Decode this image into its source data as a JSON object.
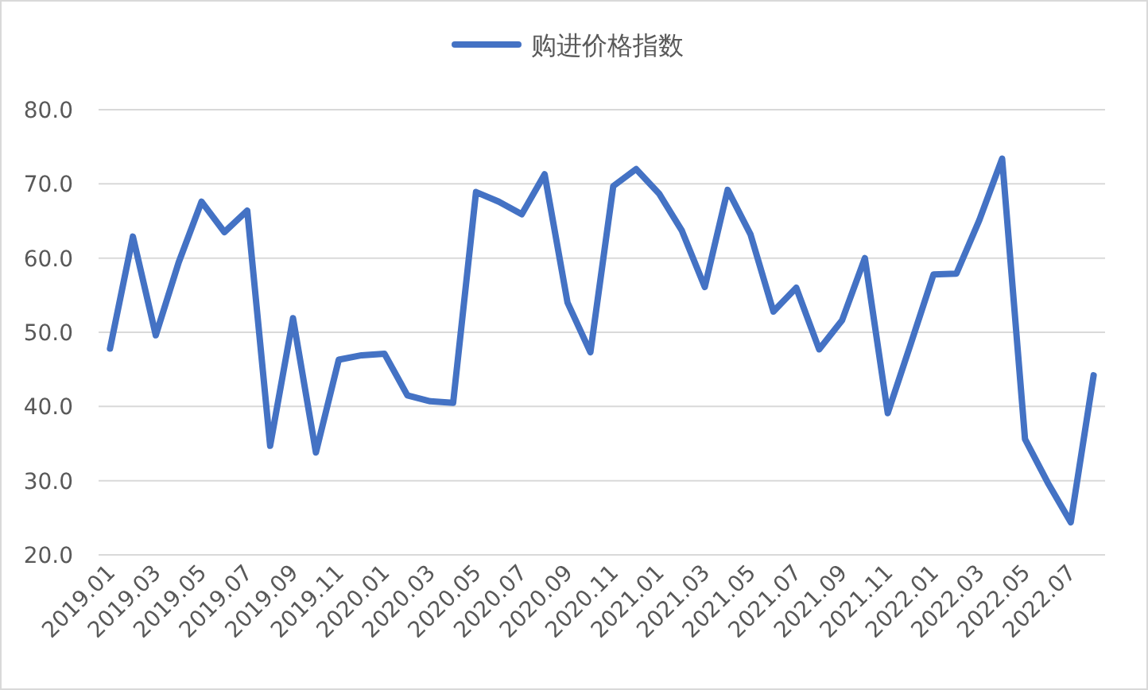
{
  "chart_data": {
    "type": "line",
    "categories": [
      "2019.01",
      null,
      "2019.03",
      null,
      "2019.05",
      null,
      "2019.07",
      null,
      "2019.09",
      null,
      "2019.11",
      null,
      "2020.01",
      null,
      "2020.03",
      null,
      "2020.05",
      null,
      "2020.07",
      null,
      "2020.09",
      null,
      "2020.11",
      null,
      "2021.01",
      null,
      "2021.03",
      null,
      "2021.05",
      null,
      "2021.07",
      null,
      "2021.09",
      null,
      "2021.11",
      null,
      "2022.01",
      null,
      "2022.03",
      null,
      "2022.05",
      null,
      "2022.07",
      null
    ],
    "series": [
      {
        "name": "购进价格指数",
        "color": "#4472c4",
        "values": [
          47.8,
          62.9,
          49.6,
          59.4,
          67.6,
          63.5,
          66.4,
          34.7,
          51.9,
          33.8,
          46.3,
          46.9,
          47.1,
          41.5,
          40.7,
          40.5,
          68.9,
          67.6,
          65.9,
          71.3,
          54.0,
          47.3,
          69.7,
          72.0,
          68.7,
          63.7,
          56.1,
          69.2,
          63.2,
          52.8,
          56.0,
          47.7,
          51.6,
          60.0,
          39.1,
          48.4,
          57.8,
          57.9,
          65.1,
          73.4,
          35.6,
          29.7,
          24.4,
          44.2
        ]
      }
    ],
    "ylim": [
      20,
      80
    ],
    "yticks": [
      {
        "value": 20,
        "label": "20.0"
      },
      {
        "value": 30,
        "label": "30.0"
      },
      {
        "value": 40,
        "label": "40.0"
      },
      {
        "value": 50,
        "label": "50.0"
      },
      {
        "value": 60,
        "label": "60.0"
      },
      {
        "value": 70,
        "label": "70.0"
      },
      {
        "value": 80,
        "label": "80.0"
      }
    ],
    "grid": "y",
    "legend": "top",
    "marker": "none",
    "line_style": "solid"
  }
}
